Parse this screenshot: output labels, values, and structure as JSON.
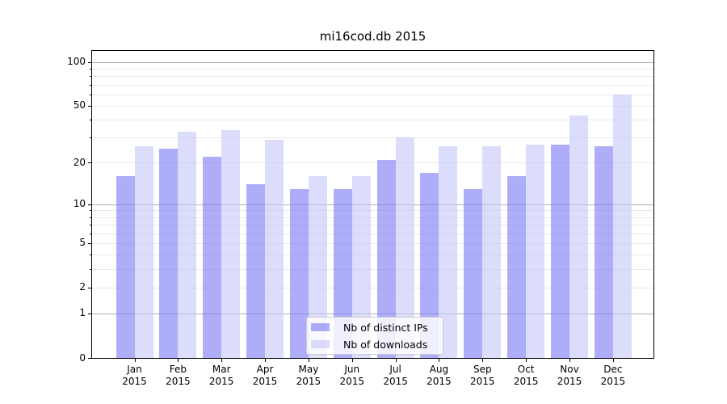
{
  "chart_data": {
    "type": "bar",
    "title": "mi16cod.db 2015",
    "categories": [
      "Jan",
      "Feb",
      "Mar",
      "Apr",
      "May",
      "Jun",
      "Jul",
      "Aug",
      "Sep",
      "Oct",
      "Nov",
      "Dec"
    ],
    "category_year": "2015",
    "series": [
      {
        "name": "Nb of distinct IPs",
        "color": "#7a7af6",
        "values": [
          16,
          25,
          22,
          14,
          13,
          13,
          21,
          17,
          13,
          16,
          27,
          26
        ]
      },
      {
        "name": "Nb of downloads",
        "color": "#c6c6f8",
        "values": [
          26,
          33,
          34,
          29,
          16,
          16,
          30,
          26,
          26,
          27,
          43,
          60
        ]
      }
    ],
    "bar_alpha": 0.62,
    "yscale": "log1p",
    "ylim": [
      0,
      119
    ],
    "yticks": [
      0,
      1,
      2,
      5,
      10,
      20,
      50,
      100
    ],
    "grid": {
      "major": [
        1,
        10,
        100
      ],
      "minor": [
        2,
        3,
        4,
        5,
        6,
        7,
        8,
        9,
        20,
        30,
        40,
        50,
        60,
        70,
        80,
        90
      ]
    },
    "legend_position": "lower center",
    "xlabel": "",
    "ylabel": ""
  },
  "colors": {
    "grid_major": "#b0b0b0",
    "grid_minor": "#e9e9e9",
    "axis": "#000000",
    "background": "#ffffff",
    "legend_border": "#cccccc"
  }
}
